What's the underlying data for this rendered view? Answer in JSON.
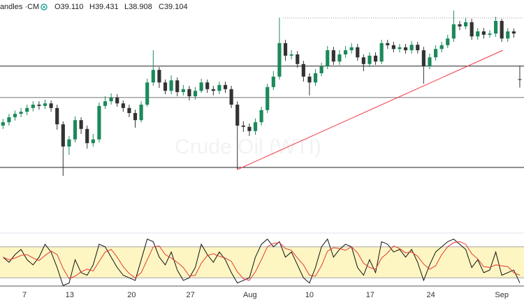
{
  "header": {
    "symbol": "Candles ·CM",
    "ohlc": [
      "O39.110",
      "H39.431",
      "L38.908",
      "C39.104"
    ]
  },
  "chart_data": [
    {
      "type": "candlestick",
      "watermark": "Crude Oil (WTI)",
      "xlim": [
        -0.5,
        86.7
      ],
      "ylim": [
        35.5,
        41
      ],
      "up_color": "#1b8a5a",
      "down_color": "#333333",
      "open": [
        38.0,
        38.08,
        38.2,
        38.28,
        38.33,
        38.42,
        38.5,
        38.47,
        38.53,
        38.42,
        38.03,
        37.5,
        37.67,
        38.13,
        37.92,
        37.58,
        37.67,
        38.47,
        38.58,
        38.67,
        38.53,
        38.42,
        38.3,
        38.13,
        38.5,
        39.03,
        39.33,
        39.03,
        38.83,
        39.08,
        38.8,
        38.87,
        38.7,
        38.83,
        39.03,
        38.87,
        38.83,
        38.97,
        38.87,
        38.5,
        38.0,
        37.97,
        37.87,
        38.08,
        38.37,
        38.92,
        39.17,
        39.97,
        39.67,
        39.7,
        39.47,
        39.17,
        39.03,
        39.25,
        39.42,
        39.8,
        39.53,
        39.7,
        39.8,
        39.87,
        39.63,
        39.47,
        39.67,
        39.53,
        39.97,
        39.92,
        39.83,
        39.87,
        39.8,
        39.93,
        39.8,
        39.42,
        39.63,
        39.83,
        39.92,
        40.08,
        40.42,
        40.37,
        40.47,
        40.13,
        40.25,
        40.17,
        40.2,
        40.5,
        40.08,
        40.25,
        39.11
      ],
      "high": [
        38.16,
        38.28,
        38.36,
        38.42,
        38.5,
        38.58,
        38.58,
        38.62,
        38.6,
        38.5,
        38.1,
        37.75,
        38.22,
        38.2,
        38.0,
        37.8,
        38.55,
        38.7,
        38.77,
        38.75,
        38.6,
        38.5,
        38.38,
        38.58,
        39.12,
        39.8,
        39.4,
        39.1,
        39.2,
        39.15,
        38.97,
        38.95,
        38.92,
        39.12,
        39.1,
        38.95,
        39.05,
        39.05,
        38.95,
        38.58,
        38.1,
        38.05,
        38.17,
        38.45,
        39.0,
        39.3,
        40.58,
        40.05,
        39.8,
        39.78,
        39.55,
        39.25,
        39.35,
        39.5,
        39.9,
        39.88,
        39.8,
        39.9,
        39.97,
        39.95,
        39.7,
        39.75,
        39.75,
        40.05,
        40.05,
        40.0,
        39.95,
        39.95,
        40.02,
        40.0,
        39.88,
        39.72,
        39.92,
        40.0,
        40.17,
        40.75,
        40.5,
        40.57,
        40.55,
        40.33,
        40.33,
        40.28,
        40.6,
        40.55,
        40.33,
        40.32,
        39.431
      ],
      "low": [
        37.92,
        38.0,
        38.12,
        38.2,
        38.25,
        38.34,
        38.38,
        38.4,
        38.33,
        37.9,
        36.8,
        37.3,
        37.6,
        37.8,
        37.45,
        37.5,
        37.6,
        38.4,
        38.5,
        38.45,
        38.33,
        38.2,
        37.95,
        38.08,
        38.45,
        38.95,
        38.9,
        38.75,
        38.75,
        38.7,
        38.72,
        38.6,
        38.62,
        38.78,
        38.78,
        38.72,
        38.75,
        38.78,
        38.42,
        36.95,
        37.85,
        37.75,
        37.78,
        38.0,
        38.3,
        38.85,
        39.1,
        39.55,
        39.58,
        39.38,
        39.05,
        38.72,
        38.95,
        39.18,
        39.35,
        39.45,
        39.45,
        39.62,
        39.72,
        39.55,
        39.3,
        39.4,
        39.45,
        39.47,
        39.83,
        39.75,
        39.75,
        39.72,
        39.72,
        39.72,
        39.0,
        39.35,
        39.55,
        39.75,
        39.85,
        40.0,
        40.28,
        40.3,
        40.05,
        40.05,
        40.08,
        40.1,
        40.12,
        40.0,
        40.0,
        40.1,
        38.908
      ],
      "close": [
        38.08,
        38.2,
        38.28,
        38.33,
        38.42,
        38.5,
        38.47,
        38.53,
        38.42,
        38.03,
        37.5,
        37.67,
        38.13,
        37.92,
        37.58,
        37.67,
        38.47,
        38.58,
        38.67,
        38.53,
        38.42,
        38.3,
        38.13,
        38.5,
        39.03,
        39.33,
        39.03,
        38.83,
        39.08,
        38.8,
        38.87,
        38.7,
        38.83,
        39.03,
        38.87,
        38.83,
        38.97,
        38.87,
        38.5,
        38.0,
        37.97,
        37.87,
        38.08,
        38.37,
        38.92,
        39.17,
        39.97,
        39.67,
        39.7,
        39.47,
        39.17,
        39.03,
        39.25,
        39.42,
        39.8,
        39.53,
        39.7,
        39.8,
        39.87,
        39.63,
        39.47,
        39.67,
        39.53,
        39.97,
        39.92,
        39.83,
        39.87,
        39.8,
        39.93,
        39.8,
        39.42,
        39.63,
        39.83,
        39.92,
        40.08,
        40.42,
        40.37,
        40.47,
        40.13,
        40.25,
        40.17,
        40.2,
        40.5,
        40.08,
        40.25,
        40.2,
        39.104
      ],
      "levels": [
        39.42,
        38.67,
        37.0
      ],
      "resistance": {
        "start": 46.6,
        "value": 40.57
      },
      "trendline": {
        "x": [
          39,
          83.2
        ],
        "y": [
          36.95,
          39.8
        ],
        "color": "#f23645"
      }
    },
    {
      "type": "line",
      "xlim": [
        -0.5,
        86.7
      ],
      "ylim": [
        0,
        100
      ],
      "bands": [
        80,
        20
      ],
      "band_color": "#fdf6c3",
      "xticks": [
        {
          "value": 3.57,
          "label": "7"
        },
        {
          "value": 11.1,
          "label": "13"
        },
        {
          "value": 21.4,
          "label": "20"
        },
        {
          "value": 31.2,
          "label": "27"
        },
        {
          "value": 41.1,
          "label": "Aug"
        },
        {
          "value": 51.0,
          "label": "10"
        },
        {
          "value": 61.1,
          "label": "17"
        },
        {
          "value": 71.2,
          "label": "24"
        },
        {
          "value": 83.0,
          "label": "Sep"
        }
      ],
      "series": [
        {
          "color": "#111111",
          "values": [
            60,
            50,
            65,
            75,
            55,
            45,
            60,
            85,
            70,
            40,
            5,
            10,
            55,
            30,
            25,
            45,
            85,
            80,
            60,
            40,
            25,
            20,
            15,
            55,
            95,
            90,
            60,
            45,
            70,
            35,
            15,
            20,
            40,
            85,
            65,
            50,
            70,
            55,
            30,
            10,
            15,
            20,
            60,
            85,
            95,
            80,
            90,
            60,
            70,
            45,
            20,
            10,
            40,
            80,
            95,
            60,
            75,
            85,
            80,
            40,
            25,
            55,
            30,
            90,
            85,
            70,
            75,
            60,
            75,
            50,
            15,
            45,
            70,
            80,
            90,
            95,
            85,
            75,
            40,
            55,
            30,
            35,
            70,
            25,
            30,
            35,
            10
          ]
        },
        {
          "color": "#e53935",
          "values": [
            60,
            55,
            58.3,
            63.3,
            65,
            58.3,
            53.3,
            63.3,
            71.7,
            65,
            38.3,
            18.3,
            23.3,
            31.7,
            36.7,
            33.3,
            51.7,
            70,
            75,
            60,
            41.7,
            28.3,
            20,
            30,
            55,
            80,
            81.7,
            65,
            58.3,
            50,
            40,
            23.3,
            25,
            48.3,
            63.3,
            66.7,
            61.7,
            58.3,
            51.7,
            31.7,
            18.3,
            15,
            31.7,
            55,
            80,
            86.7,
            88.3,
            76.7,
            73.3,
            58.3,
            45,
            25,
            23.3,
            43.3,
            71.7,
            78.3,
            76.7,
            73.3,
            80,
            68.3,
            48.3,
            40,
            36.7,
            58.3,
            68.3,
            81.7,
            76.7,
            68.3,
            70,
            61.7,
            46.7,
            36.7,
            43.3,
            65,
            80,
            88.3,
            90,
            85,
            66.7,
            56.7,
            41.7,
            40,
            45,
            43.3,
            41.7,
            30,
            25
          ]
        }
      ]
    }
  ]
}
